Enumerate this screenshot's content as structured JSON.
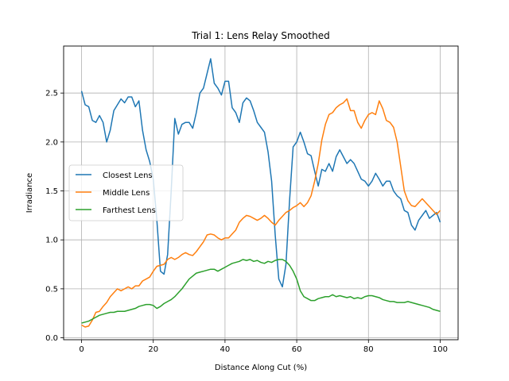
{
  "chart_data": {
    "type": "line",
    "title": "Trial 1: Lens Relay Smoothed",
    "xlabel": "Distance Along Cut (%)",
    "ylabel": "Irradiance",
    "xlim": [
      -5,
      105
    ],
    "ylim": [
      -0.02,
      2.98
    ],
    "xticks": [
      0,
      20,
      40,
      60,
      80,
      100
    ],
    "xtick_labels": [
      "0",
      "20",
      "40",
      "60",
      "80",
      "100"
    ],
    "yticks": [
      0.0,
      0.5,
      1.0,
      1.5,
      2.0,
      2.5
    ],
    "ytick_labels": [
      "0.0",
      "0.5",
      "1.0",
      "1.5",
      "2.0",
      "2.5"
    ],
    "grid": true,
    "legend_position": "center-left",
    "series": [
      {
        "name": "Closest Lens",
        "color": "#1f77b4",
        "points": [
          [
            0,
            2.52
          ],
          [
            1,
            2.38
          ],
          [
            2,
            2.36
          ],
          [
            3,
            2.22
          ],
          [
            4,
            2.2
          ],
          [
            5,
            2.27
          ],
          [
            6,
            2.2
          ],
          [
            7,
            2.0
          ],
          [
            8,
            2.12
          ],
          [
            9,
            2.32
          ],
          [
            10,
            2.38
          ],
          [
            11,
            2.44
          ],
          [
            12,
            2.4
          ],
          [
            13,
            2.46
          ],
          [
            14,
            2.46
          ],
          [
            15,
            2.36
          ],
          [
            16,
            2.42
          ],
          [
            17,
            2.12
          ],
          [
            18,
            1.92
          ],
          [
            19,
            1.8
          ],
          [
            20,
            1.62
          ],
          [
            21,
            1.2
          ],
          [
            22,
            0.68
          ],
          [
            23,
            0.65
          ],
          [
            24,
            0.85
          ],
          [
            25,
            1.5
          ],
          [
            26,
            2.24
          ],
          [
            27,
            2.08
          ],
          [
            28,
            2.18
          ],
          [
            29,
            2.2
          ],
          [
            30,
            2.2
          ],
          [
            31,
            2.14
          ],
          [
            32,
            2.3
          ],
          [
            33,
            2.5
          ],
          [
            34,
            2.55
          ],
          [
            35,
            2.7
          ],
          [
            36,
            2.85
          ],
          [
            37,
            2.6
          ],
          [
            38,
            2.55
          ],
          [
            39,
            2.48
          ],
          [
            40,
            2.62
          ],
          [
            41,
            2.62
          ],
          [
            42,
            2.35
          ],
          [
            43,
            2.3
          ],
          [
            44,
            2.2
          ],
          [
            45,
            2.4
          ],
          [
            46,
            2.45
          ],
          [
            47,
            2.42
          ],
          [
            48,
            2.32
          ],
          [
            49,
            2.2
          ],
          [
            50,
            2.15
          ],
          [
            51,
            2.1
          ],
          [
            52,
            1.9
          ],
          [
            53,
            1.6
          ],
          [
            54,
            1.05
          ],
          [
            55,
            0.6
          ],
          [
            56,
            0.52
          ],
          [
            57,
            0.75
          ],
          [
            58,
            1.4
          ],
          [
            59,
            1.95
          ],
          [
            60,
            2.0
          ],
          [
            61,
            2.1
          ],
          [
            62,
            2.0
          ],
          [
            63,
            1.88
          ],
          [
            64,
            1.86
          ],
          [
            65,
            1.7
          ],
          [
            66,
            1.55
          ],
          [
            67,
            1.72
          ],
          [
            68,
            1.7
          ],
          [
            69,
            1.78
          ],
          [
            70,
            1.7
          ],
          [
            71,
            1.85
          ],
          [
            72,
            1.92
          ],
          [
            73,
            1.85
          ],
          [
            74,
            1.78
          ],
          [
            75,
            1.82
          ],
          [
            76,
            1.78
          ],
          [
            77,
            1.7
          ],
          [
            78,
            1.62
          ],
          [
            79,
            1.6
          ],
          [
            80,
            1.55
          ],
          [
            81,
            1.6
          ],
          [
            82,
            1.68
          ],
          [
            83,
            1.62
          ],
          [
            84,
            1.55
          ],
          [
            85,
            1.6
          ],
          [
            86,
            1.6
          ],
          [
            87,
            1.5
          ],
          [
            88,
            1.45
          ],
          [
            89,
            1.42
          ],
          [
            90,
            1.3
          ],
          [
            91,
            1.28
          ],
          [
            92,
            1.15
          ],
          [
            93,
            1.1
          ],
          [
            94,
            1.2
          ],
          [
            95,
            1.25
          ],
          [
            96,
            1.3
          ],
          [
            97,
            1.22
          ],
          [
            98,
            1.25
          ],
          [
            99,
            1.28
          ],
          [
            100,
            1.18
          ]
        ]
      },
      {
        "name": "Middle Lens",
        "color": "#ff7f0e",
        "points": [
          [
            0,
            0.13
          ],
          [
            1,
            0.11
          ],
          [
            2,
            0.12
          ],
          [
            3,
            0.18
          ],
          [
            4,
            0.26
          ],
          [
            5,
            0.27
          ],
          [
            6,
            0.32
          ],
          [
            7,
            0.36
          ],
          [
            8,
            0.42
          ],
          [
            9,
            0.46
          ],
          [
            10,
            0.5
          ],
          [
            11,
            0.48
          ],
          [
            12,
            0.5
          ],
          [
            13,
            0.52
          ],
          [
            14,
            0.5
          ],
          [
            15,
            0.53
          ],
          [
            16,
            0.53
          ],
          [
            17,
            0.58
          ],
          [
            18,
            0.6
          ],
          [
            19,
            0.62
          ],
          [
            20,
            0.68
          ],
          [
            21,
            0.73
          ],
          [
            22,
            0.74
          ],
          [
            23,
            0.75
          ],
          [
            24,
            0.8
          ],
          [
            25,
            0.82
          ],
          [
            26,
            0.8
          ],
          [
            27,
            0.82
          ],
          [
            28,
            0.85
          ],
          [
            29,
            0.87
          ],
          [
            30,
            0.85
          ],
          [
            31,
            0.84
          ],
          [
            32,
            0.88
          ],
          [
            33,
            0.93
          ],
          [
            34,
            0.98
          ],
          [
            35,
            1.05
          ],
          [
            36,
            1.06
          ],
          [
            37,
            1.05
          ],
          [
            38,
            1.02
          ],
          [
            39,
            1.0
          ],
          [
            40,
            1.02
          ],
          [
            41,
            1.02
          ],
          [
            42,
            1.06
          ],
          [
            43,
            1.1
          ],
          [
            44,
            1.18
          ],
          [
            45,
            1.22
          ],
          [
            46,
            1.25
          ],
          [
            47,
            1.24
          ],
          [
            48,
            1.22
          ],
          [
            49,
            1.2
          ],
          [
            50,
            1.22
          ],
          [
            51,
            1.25
          ],
          [
            52,
            1.22
          ],
          [
            53,
            1.18
          ],
          [
            54,
            1.15
          ],
          [
            55,
            1.2
          ],
          [
            56,
            1.24
          ],
          [
            57,
            1.28
          ],
          [
            58,
            1.3
          ],
          [
            59,
            1.33
          ],
          [
            60,
            1.35
          ],
          [
            61,
            1.38
          ],
          [
            62,
            1.34
          ],
          [
            63,
            1.38
          ],
          [
            64,
            1.45
          ],
          [
            65,
            1.6
          ],
          [
            66,
            1.78
          ],
          [
            67,
            2.02
          ],
          [
            68,
            2.18
          ],
          [
            69,
            2.28
          ],
          [
            70,
            2.3
          ],
          [
            71,
            2.35
          ],
          [
            72,
            2.38
          ],
          [
            73,
            2.4
          ],
          [
            74,
            2.44
          ],
          [
            75,
            2.32
          ],
          [
            76,
            2.32
          ],
          [
            77,
            2.2
          ],
          [
            78,
            2.14
          ],
          [
            79,
            2.22
          ],
          [
            80,
            2.28
          ],
          [
            81,
            2.3
          ],
          [
            82,
            2.28
          ],
          [
            83,
            2.42
          ],
          [
            84,
            2.34
          ],
          [
            85,
            2.22
          ],
          [
            86,
            2.2
          ],
          [
            87,
            2.15
          ],
          [
            88,
            2.0
          ],
          [
            89,
            1.75
          ],
          [
            90,
            1.5
          ],
          [
            91,
            1.4
          ],
          [
            92,
            1.35
          ],
          [
            93,
            1.34
          ],
          [
            94,
            1.38
          ],
          [
            95,
            1.42
          ],
          [
            96,
            1.38
          ],
          [
            97,
            1.34
          ],
          [
            98,
            1.3
          ],
          [
            99,
            1.26
          ],
          [
            100,
            1.3
          ]
        ]
      },
      {
        "name": "Farthest Lens",
        "color": "#2ca02c",
        "points": [
          [
            0,
            0.15
          ],
          [
            1,
            0.16
          ],
          [
            2,
            0.17
          ],
          [
            3,
            0.19
          ],
          [
            4,
            0.21
          ],
          [
            5,
            0.23
          ],
          [
            6,
            0.24
          ],
          [
            7,
            0.25
          ],
          [
            8,
            0.26
          ],
          [
            9,
            0.26
          ],
          [
            10,
            0.27
          ],
          [
            11,
            0.27
          ],
          [
            12,
            0.27
          ],
          [
            13,
            0.28
          ],
          [
            14,
            0.29
          ],
          [
            15,
            0.3
          ],
          [
            16,
            0.32
          ],
          [
            17,
            0.33
          ],
          [
            18,
            0.34
          ],
          [
            19,
            0.34
          ],
          [
            20,
            0.33
          ],
          [
            21,
            0.3
          ],
          [
            22,
            0.32
          ],
          [
            23,
            0.35
          ],
          [
            24,
            0.37
          ],
          [
            25,
            0.39
          ],
          [
            26,
            0.42
          ],
          [
            27,
            0.46
          ],
          [
            28,
            0.5
          ],
          [
            29,
            0.55
          ],
          [
            30,
            0.6
          ],
          [
            31,
            0.63
          ],
          [
            32,
            0.66
          ],
          [
            33,
            0.67
          ],
          [
            34,
            0.68
          ],
          [
            35,
            0.69
          ],
          [
            36,
            0.7
          ],
          [
            37,
            0.7
          ],
          [
            38,
            0.68
          ],
          [
            39,
            0.7
          ],
          [
            40,
            0.72
          ],
          [
            41,
            0.74
          ],
          [
            42,
            0.76
          ],
          [
            43,
            0.77
          ],
          [
            44,
            0.78
          ],
          [
            45,
            0.8
          ],
          [
            46,
            0.79
          ],
          [
            47,
            0.8
          ],
          [
            48,
            0.78
          ],
          [
            49,
            0.79
          ],
          [
            50,
            0.77
          ],
          [
            51,
            0.76
          ],
          [
            52,
            0.78
          ],
          [
            53,
            0.77
          ],
          [
            54,
            0.79
          ],
          [
            55,
            0.8
          ],
          [
            56,
            0.8
          ],
          [
            57,
            0.78
          ],
          [
            58,
            0.74
          ],
          [
            59,
            0.68
          ],
          [
            60,
            0.6
          ],
          [
            61,
            0.48
          ],
          [
            62,
            0.42
          ],
          [
            63,
            0.4
          ],
          [
            64,
            0.38
          ],
          [
            65,
            0.38
          ],
          [
            66,
            0.4
          ],
          [
            67,
            0.41
          ],
          [
            68,
            0.42
          ],
          [
            69,
            0.42
          ],
          [
            70,
            0.44
          ],
          [
            71,
            0.42
          ],
          [
            72,
            0.43
          ],
          [
            73,
            0.42
          ],
          [
            74,
            0.41
          ],
          [
            75,
            0.42
          ],
          [
            76,
            0.4
          ],
          [
            77,
            0.41
          ],
          [
            78,
            0.4
          ],
          [
            79,
            0.42
          ],
          [
            80,
            0.43
          ],
          [
            81,
            0.43
          ],
          [
            82,
            0.42
          ],
          [
            83,
            0.41
          ],
          [
            84,
            0.39
          ],
          [
            85,
            0.38
          ],
          [
            86,
            0.37
          ],
          [
            87,
            0.37
          ],
          [
            88,
            0.36
          ],
          [
            89,
            0.36
          ],
          [
            90,
            0.36
          ],
          [
            91,
            0.37
          ],
          [
            92,
            0.36
          ],
          [
            93,
            0.35
          ],
          [
            94,
            0.34
          ],
          [
            95,
            0.33
          ],
          [
            96,
            0.32
          ],
          [
            97,
            0.31
          ],
          [
            98,
            0.29
          ],
          [
            99,
            0.28
          ],
          [
            100,
            0.27
          ]
        ]
      }
    ]
  }
}
